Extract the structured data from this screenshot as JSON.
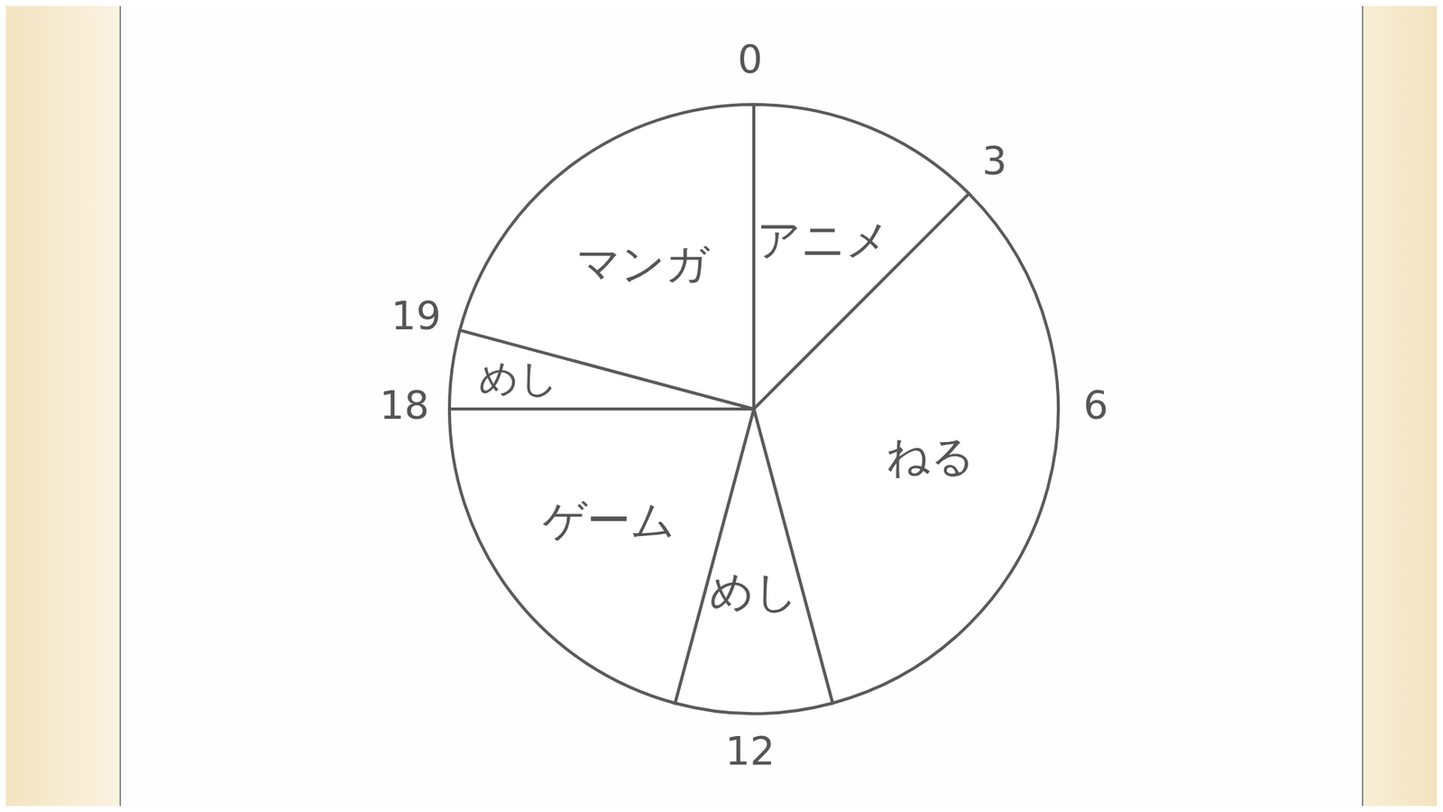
{
  "chart_data": {
    "type": "pie",
    "categories": [
      "アニメ",
      "ねる",
      "めし",
      "ゲーム",
      "めし",
      "マンガ"
    ],
    "values": [
      3,
      8,
      2,
      5,
      1,
      5
    ],
    "color": "#ffffff",
    "xlim": [
      0,
      24
    ],
    "xticks": [
      0,
      3,
      6,
      12,
      18,
      19
    ]
  }
}
